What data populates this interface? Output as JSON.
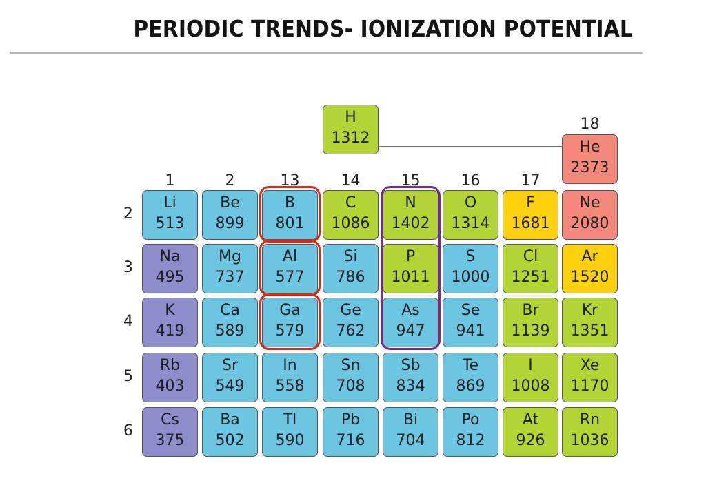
{
  "title": "PERIODIC TRENDS- IONIZATION POTENTIAL",
  "colors": {
    "alkali": "#8e8dcb",
    "metal": "#6cc6e2",
    "nonmetal": "#b4d334",
    "halogen": "#fdd10d",
    "noble": "#f4887b"
  },
  "groups": [
    "1",
    "2",
    "13",
    "14",
    "15",
    "16",
    "17",
    "18"
  ],
  "periods": [
    "2",
    "3",
    "4",
    "5",
    "6"
  ],
  "hydrogen": {
    "symbol": "H",
    "ie": "1312",
    "type": "nonmetal"
  },
  "helium": {
    "symbol": "He",
    "ie": "2373",
    "type": "noble"
  },
  "rows": [
    [
      {
        "symbol": "Li",
        "ie": "513",
        "type": "metal"
      },
      {
        "symbol": "Be",
        "ie": "899",
        "type": "metal"
      },
      {
        "symbol": "B",
        "ie": "801",
        "type": "metal"
      },
      {
        "symbol": "C",
        "ie": "1086",
        "type": "nonmetal"
      },
      {
        "symbol": "N",
        "ie": "1402",
        "type": "nonmetal"
      },
      {
        "symbol": "O",
        "ie": "1314",
        "type": "nonmetal"
      },
      {
        "symbol": "F",
        "ie": "1681",
        "type": "halogen"
      },
      {
        "symbol": "Ne",
        "ie": "2080",
        "type": "noble"
      }
    ],
    [
      {
        "symbol": "Na",
        "ie": "495",
        "type": "alkali"
      },
      {
        "symbol": "Mg",
        "ie": "737",
        "type": "metal"
      },
      {
        "symbol": "Al",
        "ie": "577",
        "type": "metal"
      },
      {
        "symbol": "Si",
        "ie": "786",
        "type": "metal"
      },
      {
        "symbol": "P",
        "ie": "1011",
        "type": "nonmetal"
      },
      {
        "symbol": "S",
        "ie": "1000",
        "type": "metal"
      },
      {
        "symbol": "Cl",
        "ie": "1251",
        "type": "nonmetal"
      },
      {
        "symbol": "Ar",
        "ie": "1520",
        "type": "halogen"
      }
    ],
    [
      {
        "symbol": "K",
        "ie": "419",
        "type": "alkali"
      },
      {
        "symbol": "Ca",
        "ie": "589",
        "type": "metal"
      },
      {
        "symbol": "Ga",
        "ie": "579",
        "type": "metal"
      },
      {
        "symbol": "Ge",
        "ie": "762",
        "type": "metal"
      },
      {
        "symbol": "As",
        "ie": "947",
        "type": "metal"
      },
      {
        "symbol": "Se",
        "ie": "941",
        "type": "metal"
      },
      {
        "symbol": "Br",
        "ie": "1139",
        "type": "nonmetal"
      },
      {
        "symbol": "Kr",
        "ie": "1351",
        "type": "nonmetal"
      }
    ],
    [
      {
        "symbol": "Rb",
        "ie": "403",
        "type": "alkali"
      },
      {
        "symbol": "Sr",
        "ie": "549",
        "type": "metal"
      },
      {
        "symbol": "In",
        "ie": "558",
        "type": "metal"
      },
      {
        "symbol": "Sn",
        "ie": "708",
        "type": "metal"
      },
      {
        "symbol": "Sb",
        "ie": "834",
        "type": "metal"
      },
      {
        "symbol": "Te",
        "ie": "869",
        "type": "metal"
      },
      {
        "symbol": "I",
        "ie": "1008",
        "type": "nonmetal"
      },
      {
        "symbol": "Xe",
        "ie": "1170",
        "type": "nonmetal"
      }
    ],
    [
      {
        "symbol": "Cs",
        "ie": "375",
        "type": "alkali"
      },
      {
        "symbol": "Ba",
        "ie": "502",
        "type": "metal"
      },
      {
        "symbol": "Tl",
        "ie": "590",
        "type": "metal"
      },
      {
        "symbol": "Pb",
        "ie": "716",
        "type": "metal"
      },
      {
        "symbol": "Bi",
        "ie": "704",
        "type": "metal"
      },
      {
        "symbol": "Po",
        "ie": "812",
        "type": "metal"
      },
      {
        "symbol": "At",
        "ie": "926",
        "type": "nonmetal"
      },
      {
        "symbol": "Rn",
        "ie": "1036",
        "type": "nonmetal"
      }
    ]
  ],
  "highlights": {
    "group13": {
      "color": "#d72a16",
      "elements": [
        "B",
        "Al",
        "Ga"
      ]
    },
    "group15": {
      "color": "#7a2a8a",
      "elements": [
        "N",
        "P",
        "As"
      ]
    }
  }
}
